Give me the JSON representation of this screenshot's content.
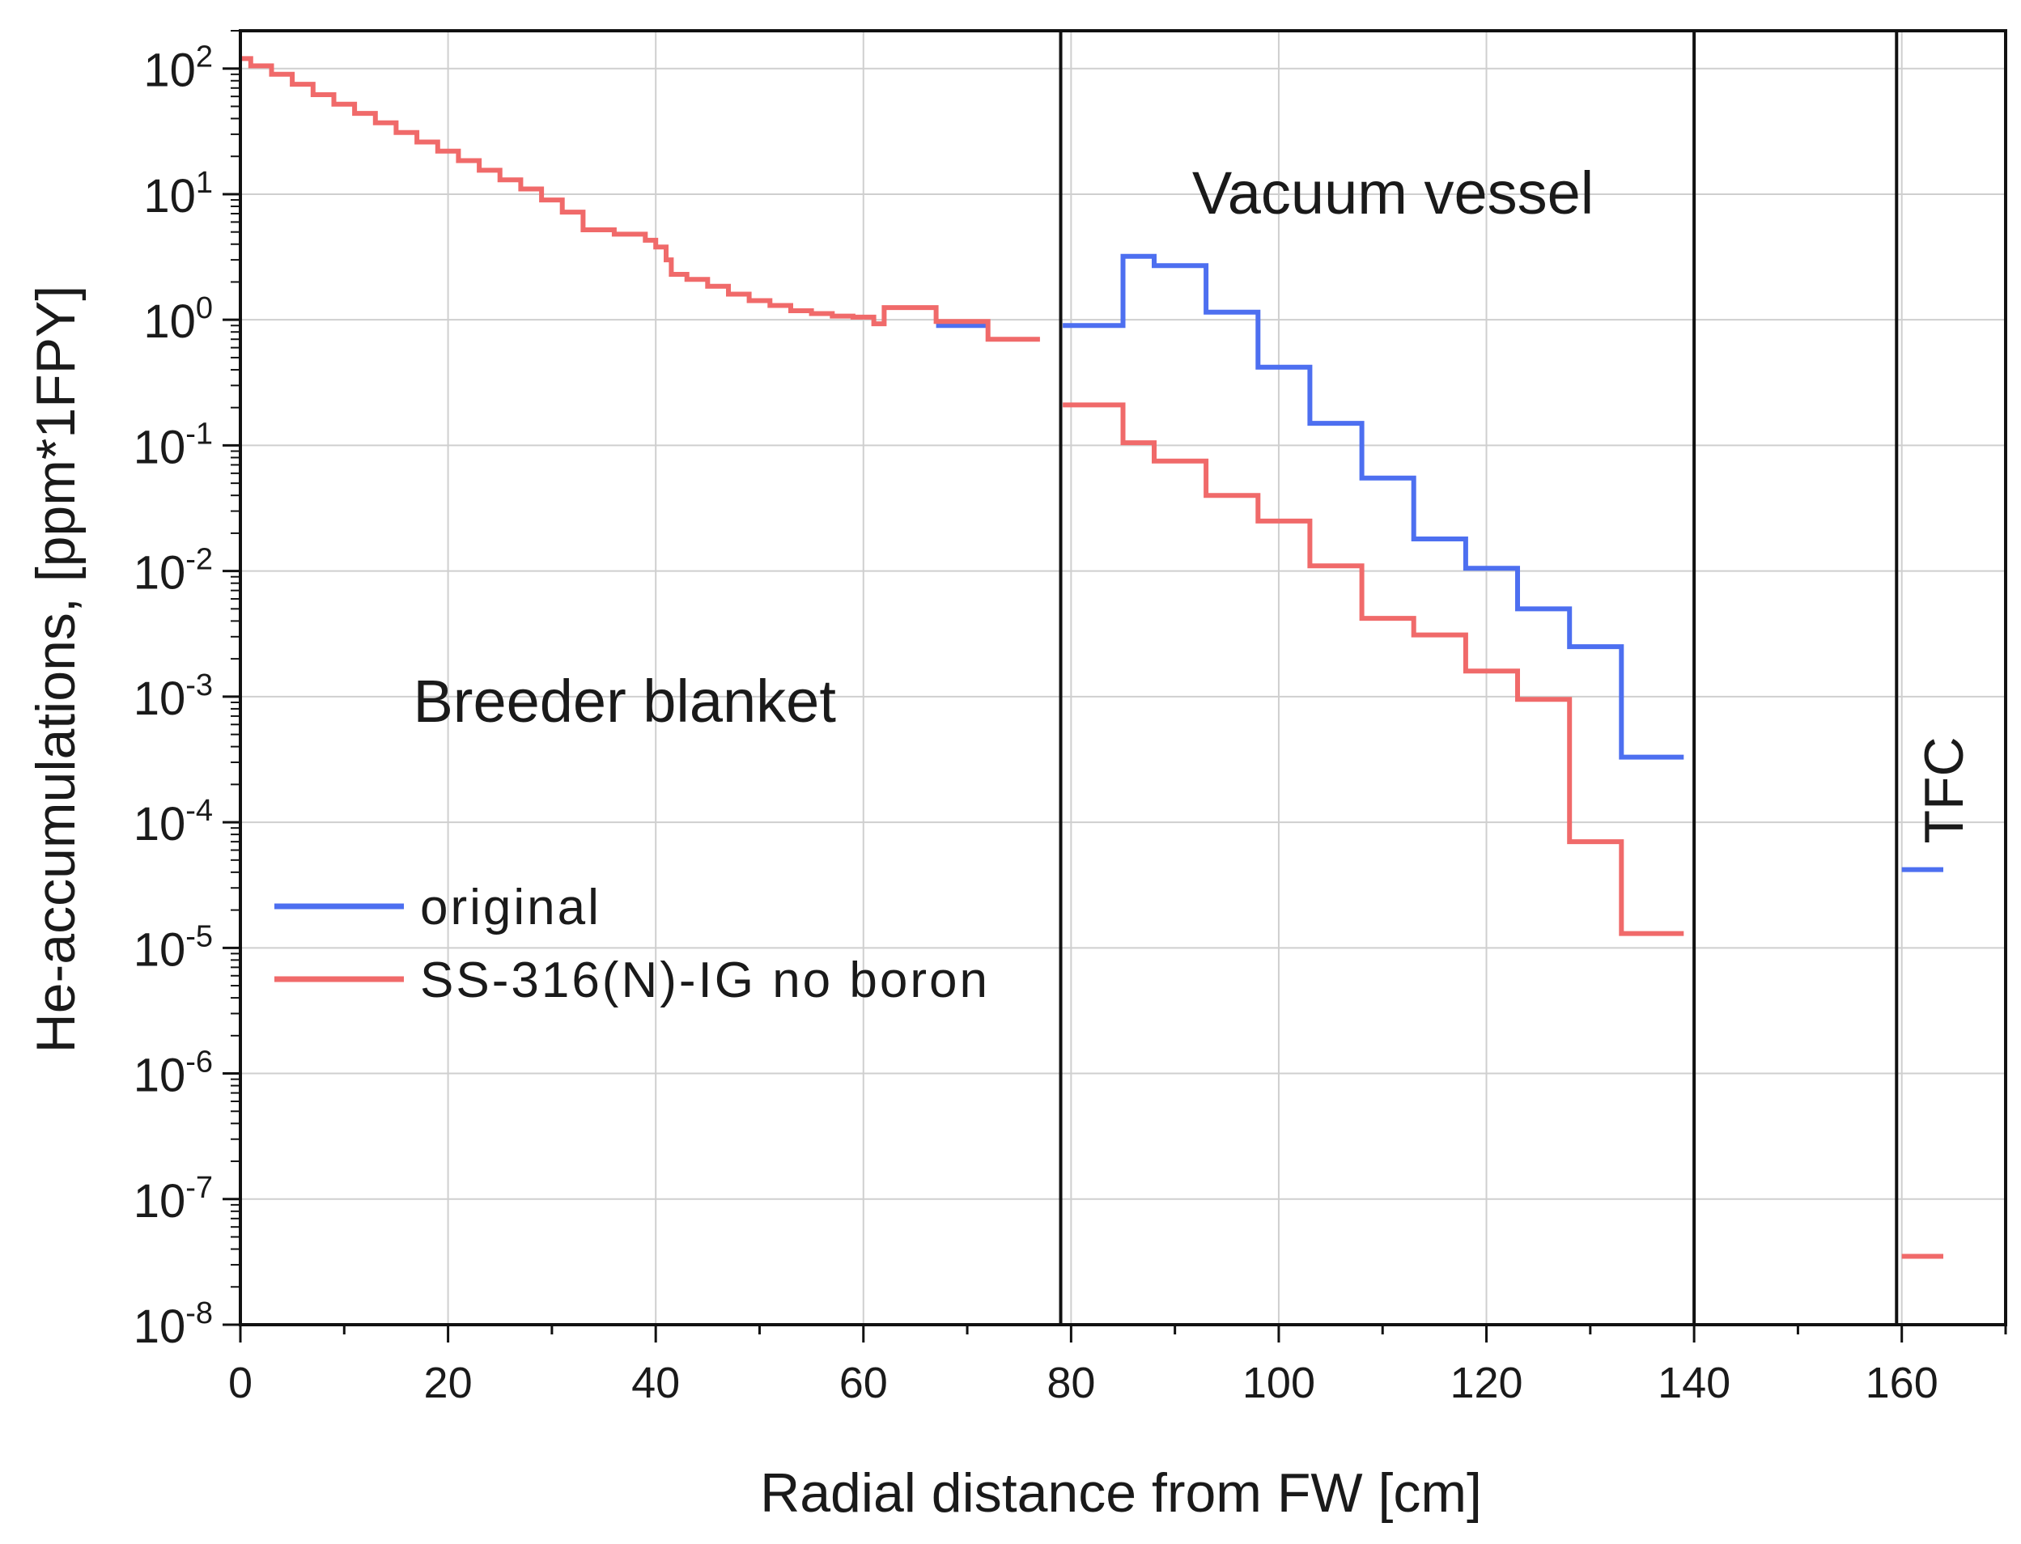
{
  "chart_data": {
    "type": "line",
    "xlabel": "Radial distance from FW [cm]",
    "ylabel": "He-accumulations, [ppm*1FPY]",
    "xlim": [
      0,
      170
    ],
    "ylim": [
      1e-08,
      200
    ],
    "yscale": "log",
    "grid": true,
    "x_ticks": [
      0,
      20,
      40,
      60,
      80,
      100,
      120,
      140,
      160
    ],
    "y_ticks": [
      {
        "base": "10",
        "exp": "2",
        "value": 100
      },
      {
        "base": "10",
        "exp": "1",
        "value": 10
      },
      {
        "base": "10",
        "exp": "0",
        "value": 1
      },
      {
        "base": "10",
        "exp": "-1",
        "value": 0.1
      },
      {
        "base": "10",
        "exp": "-2",
        "value": 0.01
      },
      {
        "base": "10",
        "exp": "-3",
        "value": 0.001
      },
      {
        "base": "10",
        "exp": "-4",
        "value": 0.0001
      },
      {
        "base": "10",
        "exp": "-5",
        "value": 1e-05
      },
      {
        "base": "10",
        "exp": "-6",
        "value": 1e-06
      },
      {
        "base": "10",
        "exp": "-7",
        "value": 1e-07
      },
      {
        "base": "10",
        "exp": "-8",
        "value": 1e-08
      }
    ],
    "region_boundaries": [
      79,
      140,
      159.5
    ],
    "annotations": [
      {
        "text": "Breeder blanket",
        "x": 37,
        "y": 0.0009
      },
      {
        "text": "Vacuum vessel",
        "x": 111,
        "y": 10
      },
      {
        "text": "TFC",
        "x": 164,
        "y": 0.00018,
        "rotated": true
      }
    ],
    "legend_placement": "lower-left",
    "series": [
      {
        "name": "original",
        "color": "#4d6ff0",
        "segments": [
          [
            [
              67,
              0.9
            ],
            [
              72,
              0.9
            ]
          ],
          [
            [
              79.2,
              0.9
            ],
            [
              85,
              0.9
            ],
            [
              85,
              3.2
            ],
            [
              88,
              3.2
            ],
            [
              88,
              2.7
            ],
            [
              93,
              2.7
            ],
            [
              93,
              1.15
            ],
            [
              98,
              1.15
            ],
            [
              98,
              0.42
            ],
            [
              103,
              0.42
            ],
            [
              103,
              0.15
            ],
            [
              108,
              0.15
            ],
            [
              108,
              0.055
            ],
            [
              113,
              0.055
            ],
            [
              113,
              0.018
            ],
            [
              118,
              0.018
            ],
            [
              118,
              0.0105
            ],
            [
              123,
              0.0105
            ],
            [
              123,
              0.005
            ],
            [
              128,
              0.005
            ],
            [
              128,
              0.0025
            ],
            [
              133,
              0.0025
            ],
            [
              133,
              0.00033
            ],
            [
              139,
              0.00033
            ]
          ],
          [
            [
              160,
              4.2e-05
            ],
            [
              164,
              4.2e-05
            ]
          ]
        ]
      },
      {
        "name": "SS-316(N)-IG no boron",
        "color": "#f06a6a",
        "segments": [
          [
            [
              0,
              120
            ],
            [
              1,
              120
            ],
            [
              1,
              105
            ],
            [
              3,
              105
            ],
            [
              3,
              90
            ],
            [
              5,
              90
            ],
            [
              5,
              75
            ],
            [
              7,
              75
            ],
            [
              7,
              62
            ],
            [
              9,
              62
            ],
            [
              9,
              52
            ],
            [
              11,
              52
            ],
            [
              11,
              44
            ],
            [
              13,
              44
            ],
            [
              13,
              37
            ],
            [
              15,
              37
            ],
            [
              15,
              31
            ],
            [
              17,
              31
            ],
            [
              17,
              26
            ],
            [
              19,
              26
            ],
            [
              19,
              22
            ],
            [
              21,
              22
            ],
            [
              21,
              18.5
            ],
            [
              23,
              18.5
            ],
            [
              23,
              15.5
            ],
            [
              25,
              15.5
            ],
            [
              25,
              13
            ],
            [
              27,
              13
            ],
            [
              27,
              11
            ],
            [
              29,
              11
            ],
            [
              29,
              9
            ],
            [
              31,
              9
            ],
            [
              31,
              7.2
            ],
            [
              33,
              7.2
            ],
            [
              33,
              5.2
            ],
            [
              36,
              5.2
            ],
            [
              36,
              4.8
            ],
            [
              39,
              4.8
            ],
            [
              39,
              4.3
            ],
            [
              40,
              4.3
            ],
            [
              40,
              3.8
            ],
            [
              41,
              3.8
            ],
            [
              41,
              3.0
            ],
            [
              41.5,
              3.0
            ],
            [
              41.5,
              2.3
            ],
            [
              43,
              2.3
            ],
            [
              43,
              2.1
            ],
            [
              45,
              2.1
            ],
            [
              45,
              1.85
            ],
            [
              47,
              1.85
            ],
            [
              47,
              1.6
            ],
            [
              49,
              1.6
            ],
            [
              49,
              1.42
            ],
            [
              51,
              1.42
            ],
            [
              51,
              1.3
            ],
            [
              53,
              1.3
            ],
            [
              53,
              1.18
            ],
            [
              55,
              1.18
            ],
            [
              55,
              1.12
            ],
            [
              57,
              1.12
            ],
            [
              57,
              1.07
            ],
            [
              59,
              1.07
            ],
            [
              59,
              1.05
            ],
            [
              61,
              1.05
            ],
            [
              61,
              0.93
            ],
            [
              62,
              0.93
            ],
            [
              62,
              1.25
            ],
            [
              67,
              1.25
            ],
            [
              67,
              0.97
            ],
            [
              72,
              0.97
            ],
            [
              72,
              0.7
            ],
            [
              77,
              0.7
            ]
          ],
          [
            [
              79.2,
              0.21
            ],
            [
              85,
              0.21
            ],
            [
              85,
              0.105
            ],
            [
              88,
              0.105
            ],
            [
              88,
              0.075
            ],
            [
              93,
              0.075
            ],
            [
              93,
              0.04
            ],
            [
              98,
              0.04
            ],
            [
              98,
              0.025
            ],
            [
              103,
              0.025
            ],
            [
              103,
              0.011
            ],
            [
              108,
              0.011
            ],
            [
              108,
              0.0042
            ],
            [
              113,
              0.0042
            ],
            [
              113,
              0.0031
            ],
            [
              118,
              0.0031
            ],
            [
              118,
              0.0016
            ],
            [
              123,
              0.0016
            ],
            [
              123,
              0.00095
            ],
            [
              128,
              0.00095
            ],
            [
              128,
              7e-05
            ],
            [
              133,
              7e-05
            ],
            [
              133,
              1.3e-05
            ],
            [
              139,
              1.3e-05
            ]
          ],
          [
            [
              160,
              3.5e-08
            ],
            [
              164,
              3.5e-08
            ]
          ]
        ]
      }
    ]
  }
}
